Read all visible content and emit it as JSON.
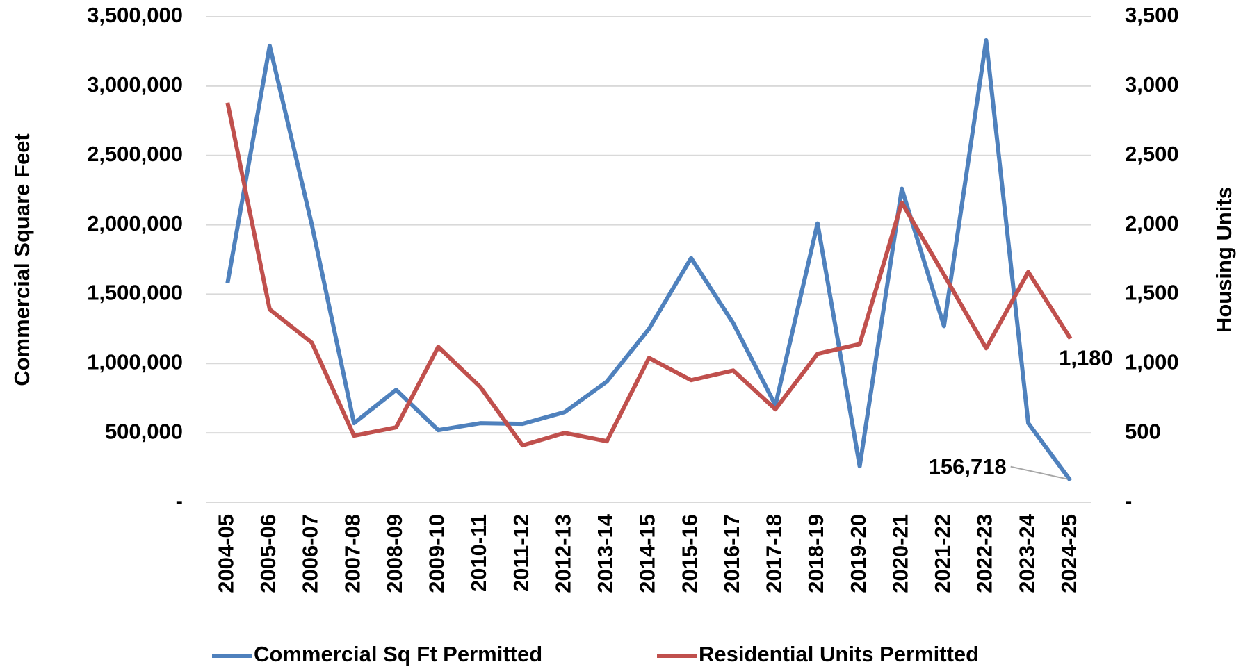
{
  "chart_data": {
    "type": "line",
    "y_label": "Commercial Square Feet",
    "y2_label": "Housing Units",
    "categories": [
      "2004-05",
      "2005-06",
      "2006-07",
      "2007-08",
      "2008-09",
      "2009-10",
      "2010-11",
      "2011-12",
      "2012-13",
      "2013-14",
      "2014-15",
      "2015-16",
      "2016-17",
      "2017-18",
      "2018-19",
      "2019-20",
      "2020-21",
      "2021-22",
      "2022-23",
      "2023-24",
      "2024-25"
    ],
    "series": [
      {
        "name": "Commercial Sq Ft Permitted",
        "color": "#4f81bd",
        "axis": "y",
        "values": [
          1580000,
          3290000,
          2000000,
          570000,
          810000,
          520000,
          570000,
          565000,
          650000,
          870000,
          1250000,
          1760000,
          1290000,
          700000,
          2010000,
          260000,
          2260000,
          1270000,
          3330000,
          570000,
          156718
        ],
        "value_labels": [
          null,
          null,
          null,
          null,
          null,
          null,
          null,
          null,
          null,
          null,
          null,
          null,
          null,
          null,
          null,
          null,
          null,
          null,
          null,
          null,
          "156,718"
        ]
      },
      {
        "name": "Residential Units Permitted",
        "color": "#c0504d",
        "axis": "y2",
        "values": [
          2880,
          1390,
          1150,
          480,
          540,
          1120,
          830,
          410,
          500,
          440,
          1040,
          880,
          950,
          670,
          1070,
          1140,
          2160,
          1640,
          1110,
          1660,
          1180
        ],
        "value_labels": [
          null,
          null,
          null,
          null,
          null,
          null,
          null,
          null,
          null,
          null,
          null,
          null,
          null,
          null,
          null,
          null,
          null,
          null,
          null,
          null,
          "1,180"
        ]
      }
    ],
    "ylim": [
      0,
      3500000
    ],
    "yticks": [
      {
        "value": 0,
        "label": "-"
      },
      {
        "value": 500000,
        "label": "500,000"
      },
      {
        "value": 1000000,
        "label": "1,000,000"
      },
      {
        "value": 1500000,
        "label": "1,500,000"
      },
      {
        "value": 2000000,
        "label": "2,000,000"
      },
      {
        "value": 2500000,
        "label": "2,500,000"
      },
      {
        "value": 3000000,
        "label": "3,000,000"
      },
      {
        "value": 3500000,
        "label": "3,500,000"
      }
    ],
    "y2lim": [
      0,
      3500
    ],
    "y2ticks": [
      {
        "value": 0,
        "label": "-"
      },
      500,
      {
        "value": 1000,
        "label": "1,000"
      },
      {
        "value": 1500,
        "label": "1,500"
      },
      {
        "value": 2000,
        "label": "2,000"
      },
      {
        "value": 2500,
        "label": "2,500"
      },
      {
        "value": 3000,
        "label": "3,000"
      },
      {
        "value": 3500,
        "label": "3,500"
      }
    ],
    "grid": true,
    "legend": "bottom"
  }
}
